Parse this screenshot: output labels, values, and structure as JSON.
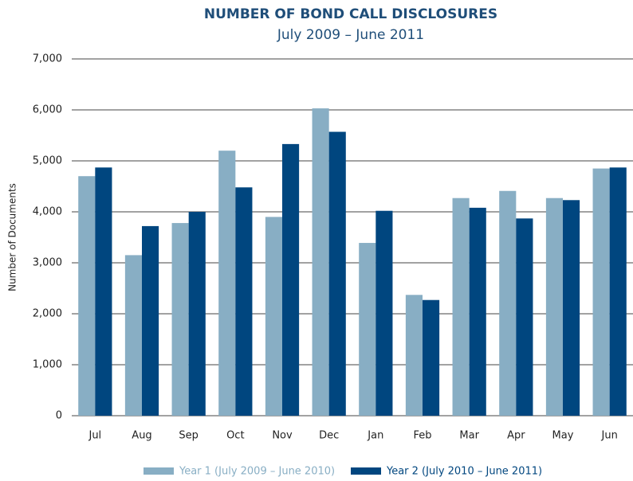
{
  "chart_data": {
    "type": "bar",
    "title": "NUMBER OF BOND CALL DISCLOSURES",
    "subtitle": "July 2009 – June 2011",
    "y_label": "Number of Documents",
    "categories": [
      "Jul",
      "Aug",
      "Sep",
      "Oct",
      "Nov",
      "Dec",
      "Jan",
      "Feb",
      "Mar",
      "Apr",
      "May",
      "Jun"
    ],
    "series": [
      {
        "name": "Year 1 (July 2009 – June 2010)",
        "color": "#88aec4",
        "values": [
          4700,
          3150,
          3780,
          5200,
          3900,
          6030,
          3390,
          2370,
          4270,
          4410,
          4270,
          4850
        ]
      },
      {
        "name": "Year 2 (July 2010 – June 2011)",
        "color": "#00467f",
        "values": [
          4870,
          3720,
          4000,
          4480,
          5330,
          5570,
          4020,
          2270,
          4080,
          3870,
          4230,
          4870
        ]
      }
    ],
    "ylim": [
      0,
      7000
    ],
    "yticks": [
      0,
      {
        "value": 1000,
        "label": "1,000"
      },
      {
        "value": 2000,
        "label": "2,000"
      },
      {
        "value": 3000,
        "label": "3,000"
      },
      {
        "value": 4000,
        "label": "4,000"
      },
      {
        "value": 5000,
        "label": "5,000"
      },
      {
        "value": 6000,
        "label": "6,000"
      },
      {
        "value": 7000,
        "label": "7,000"
      }
    ],
    "grid": true,
    "legend": "bottom"
  }
}
